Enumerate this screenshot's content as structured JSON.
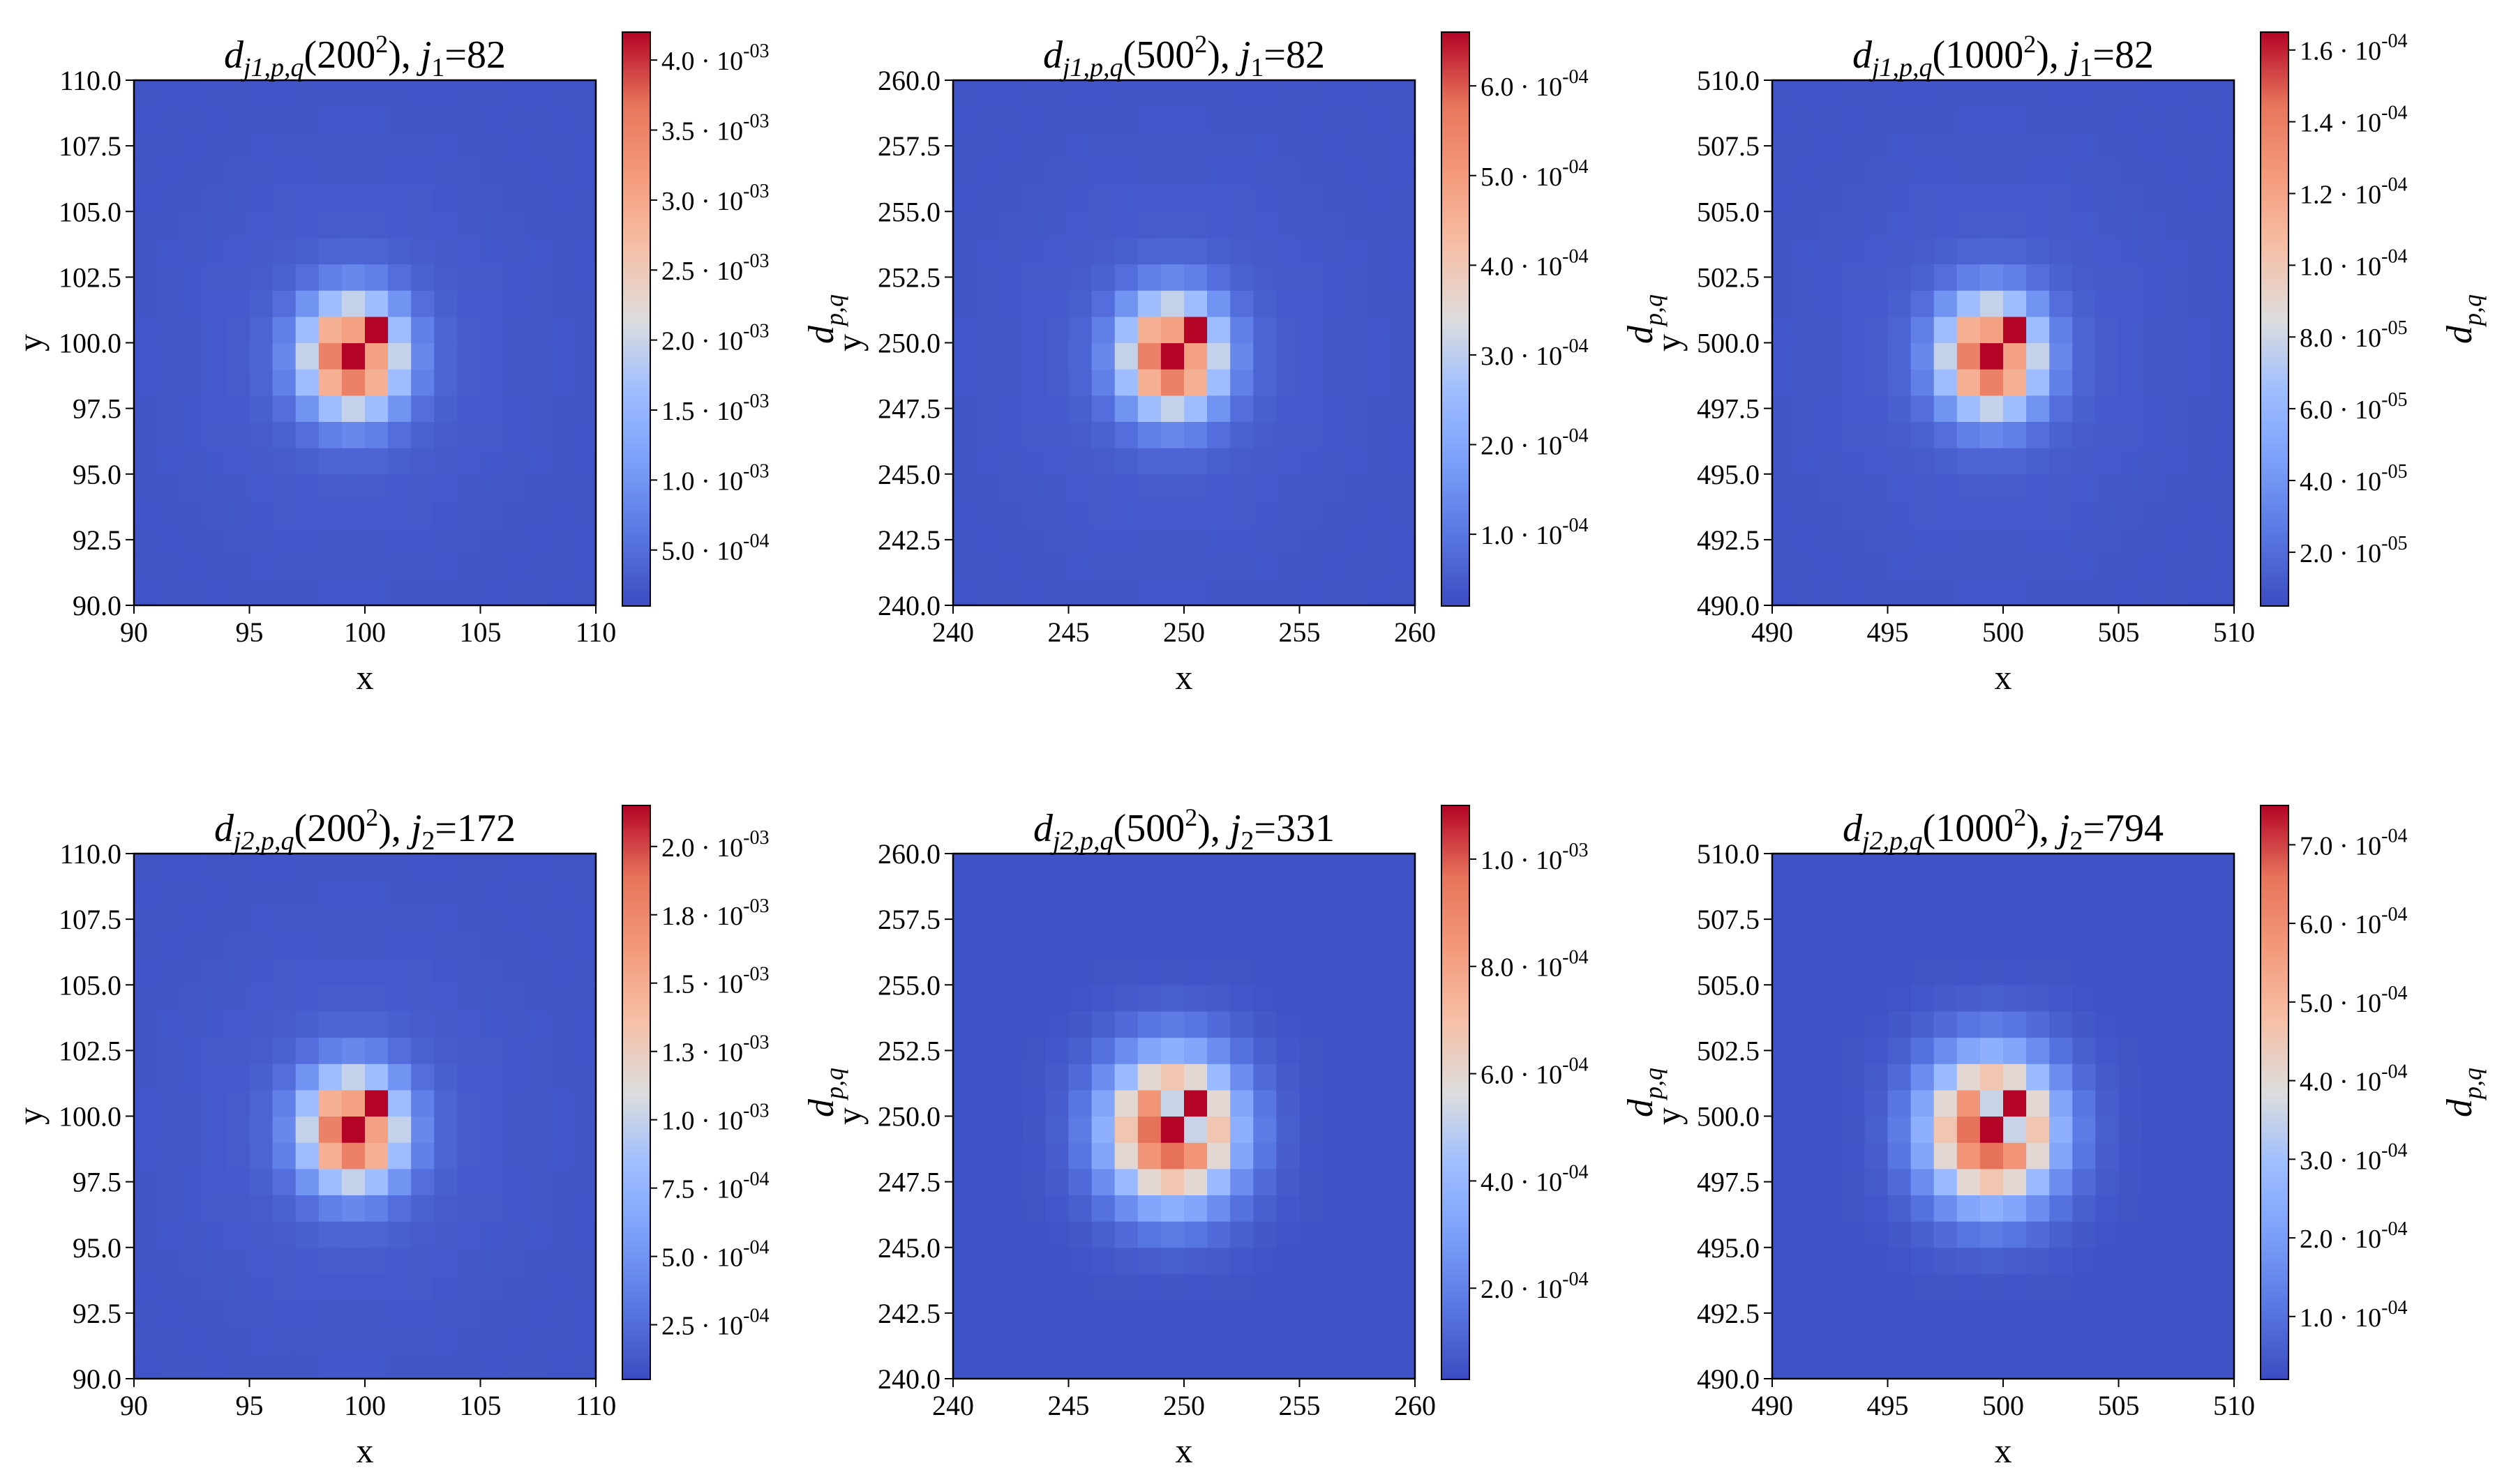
{
  "chart_data": [
    {
      "type": "heatmap",
      "title": {
        "d_sub": "j1,p,q",
        "n": "200",
        "j_sub": "1",
        "j_value": "82"
      },
      "xlabel": "x",
      "ylabel": "y",
      "colorbar_label": "d_{p,q}",
      "xlim": [
        90,
        110
      ],
      "ylim": [
        90,
        110
      ],
      "xticks": [
        "90",
        "95",
        "100",
        "105",
        "110"
      ],
      "yticks": [
        "90.0",
        "92.5",
        "95.0",
        "97.5",
        "100.0",
        "102.5",
        "105.0",
        "107.5",
        "110.0"
      ],
      "center": [
        99.5,
        99.5
      ],
      "vmin": 0.0001,
      "vmax": 0.0042,
      "pattern": "checkerboard",
      "colorbar_ticks": [
        {
          "value": 0.0005,
          "label": "5.0 · 10^-04"
        },
        {
          "value": 0.001,
          "label": "1.0 · 10^-03"
        },
        {
          "value": 0.0015,
          "label": "1.5 · 10^-03"
        },
        {
          "value": 0.002,
          "label": "2.0 · 10^-03"
        },
        {
          "value": 0.0025,
          "label": "2.5 · 10^-03"
        },
        {
          "value": 0.003,
          "label": "3.0 · 10^-03"
        },
        {
          "value": 0.0035,
          "label": "3.5 · 10^-03"
        },
        {
          "value": 0.004,
          "label": "4.0 · 10^-03"
        }
      ]
    },
    {
      "type": "heatmap",
      "title": {
        "d_sub": "j1,p,q",
        "n": "500",
        "j_sub": "1",
        "j_value": "82"
      },
      "xlabel": "x",
      "ylabel": "y",
      "colorbar_label": "d_{p,q}",
      "xlim": [
        240,
        260
      ],
      "ylim": [
        240,
        260
      ],
      "xticks": [
        "240",
        "245",
        "250",
        "255",
        "260"
      ],
      "yticks": [
        "240.0",
        "242.5",
        "245.0",
        "247.5",
        "250.0",
        "252.5",
        "255.0",
        "257.5",
        "260.0"
      ],
      "center": [
        249.5,
        249.5
      ],
      "vmin": 2e-05,
      "vmax": 0.00066,
      "pattern": "checkerboard",
      "colorbar_ticks": [
        {
          "value": 0.0001,
          "label": "1.0 · 10^-04"
        },
        {
          "value": 0.0002,
          "label": "2.0 · 10^-04"
        },
        {
          "value": 0.0003,
          "label": "3.0 · 10^-04"
        },
        {
          "value": 0.0004,
          "label": "4.0 · 10^-04"
        },
        {
          "value": 0.0005,
          "label": "5.0 · 10^-04"
        },
        {
          "value": 0.0006,
          "label": "6.0 · 10^-04"
        }
      ]
    },
    {
      "type": "heatmap",
      "title": {
        "d_sub": "j1,p,q",
        "n": "1000",
        "j_sub": "1",
        "j_value": "82"
      },
      "xlabel": "x",
      "ylabel": "y",
      "colorbar_label": "d_{p,q}",
      "xlim": [
        490,
        510
      ],
      "ylim": [
        490,
        510
      ],
      "xticks": [
        "490",
        "495",
        "500",
        "505",
        "510"
      ],
      "yticks": [
        "490.0",
        "492.5",
        "495.0",
        "497.5",
        "500.0",
        "502.5",
        "505.0",
        "507.5",
        "510.0"
      ],
      "center": [
        499.5,
        499.5
      ],
      "vmin": 5e-06,
      "vmax": 0.000165,
      "pattern": "checkerboard",
      "colorbar_ticks": [
        {
          "value": 2e-05,
          "label": "2.0 · 10^-05"
        },
        {
          "value": 4e-05,
          "label": "4.0 · 10^-05"
        },
        {
          "value": 6e-05,
          "label": "6.0 · 10^-05"
        },
        {
          "value": 8e-05,
          "label": "8.0 · 10^-05"
        },
        {
          "value": 0.0001,
          "label": "1.0 · 10^-04"
        },
        {
          "value": 0.00012,
          "label": "1.2 · 10^-04"
        },
        {
          "value": 0.00014,
          "label": "1.4 · 10^-04"
        },
        {
          "value": 0.00016,
          "label": "1.6 · 10^-04"
        }
      ]
    },
    {
      "type": "heatmap",
      "title": {
        "d_sub": "j2,p,q",
        "n": "200",
        "j_sub": "2",
        "j_value": "172"
      },
      "xlabel": "x",
      "ylabel": "y",
      "colorbar_label": "d_{p,q}",
      "xlim": [
        90,
        110
      ],
      "ylim": [
        90,
        110
      ],
      "xticks": [
        "90",
        "95",
        "100",
        "105",
        "110"
      ],
      "yticks": [
        "90.0",
        "92.5",
        "95.0",
        "97.5",
        "100.0",
        "102.5",
        "105.0",
        "107.5",
        "110.0"
      ],
      "center": [
        99.5,
        99.5
      ],
      "vmin": 5e-05,
      "vmax": 0.00215,
      "pattern": "checkerboard",
      "colorbar_ticks": [
        {
          "value": 0.00025,
          "label": "2.5 · 10^-04"
        },
        {
          "value": 0.0005,
          "label": "5.0 · 10^-04"
        },
        {
          "value": 0.00075,
          "label": "7.5 · 10^-04"
        },
        {
          "value": 0.001,
          "label": "1.0 · 10^-03"
        },
        {
          "value": 0.00125,
          "label": "1.3 · 10^-03"
        },
        {
          "value": 0.0015,
          "label": "1.5 · 10^-03"
        },
        {
          "value": 0.00175,
          "label": "1.8 · 10^-03"
        },
        {
          "value": 0.002,
          "label": "2.0 · 10^-03"
        }
      ]
    },
    {
      "type": "heatmap",
      "title": {
        "d_sub": "j2,p,q",
        "n": "500",
        "j_sub": "2",
        "j_value": "331"
      },
      "xlabel": "x",
      "ylabel": "y",
      "colorbar_label": "d_{p,q}",
      "xlim": [
        240,
        260
      ],
      "ylim": [
        240,
        260
      ],
      "xticks": [
        "240",
        "245",
        "250",
        "255",
        "260"
      ],
      "yticks": [
        "240.0",
        "242.5",
        "245.0",
        "247.5",
        "250.0",
        "252.5",
        "255.0",
        "257.5",
        "260.0"
      ],
      "center": [
        249.5,
        249.5
      ],
      "vmin": 3e-05,
      "vmax": 0.0011,
      "pattern": "smooth",
      "colorbar_ticks": [
        {
          "value": 0.0002,
          "label": "2.0 · 10^-04"
        },
        {
          "value": 0.0004,
          "label": "4.0 · 10^-04"
        },
        {
          "value": 0.0006,
          "label": "6.0 · 10^-04"
        },
        {
          "value": 0.0008,
          "label": "8.0 · 10^-04"
        },
        {
          "value": 0.001,
          "label": "1.0 · 10^-03"
        }
      ]
    },
    {
      "type": "heatmap",
      "title": {
        "d_sub": "j2,p,q",
        "n": "1000",
        "j_sub": "2",
        "j_value": "794"
      },
      "xlabel": "x",
      "ylabel": "y",
      "colorbar_label": "d_{p,q}",
      "xlim": [
        490,
        510
      ],
      "ylim": [
        490,
        510
      ],
      "xticks": [
        "490",
        "495",
        "500",
        "505",
        "510"
      ],
      "yticks": [
        "490.0",
        "492.5",
        "495.0",
        "497.5",
        "500.0",
        "502.5",
        "505.0",
        "507.5",
        "510.0"
      ],
      "center": [
        499.5,
        499.5
      ],
      "vmin": 2e-05,
      "vmax": 0.00075,
      "pattern": "smooth",
      "colorbar_ticks": [
        {
          "value": 0.0001,
          "label": "1.0 · 10^-04"
        },
        {
          "value": 0.0002,
          "label": "2.0 · 10^-04"
        },
        {
          "value": 0.0003,
          "label": "3.0 · 10^-04"
        },
        {
          "value": 0.0004,
          "label": "4.0 · 10^-04"
        },
        {
          "value": 0.0005,
          "label": "5.0 · 10^-04"
        },
        {
          "value": 0.0006,
          "label": "6.0 · 10^-04"
        },
        {
          "value": 0.0007,
          "label": "7.0 · 10^-04"
        }
      ]
    }
  ]
}
